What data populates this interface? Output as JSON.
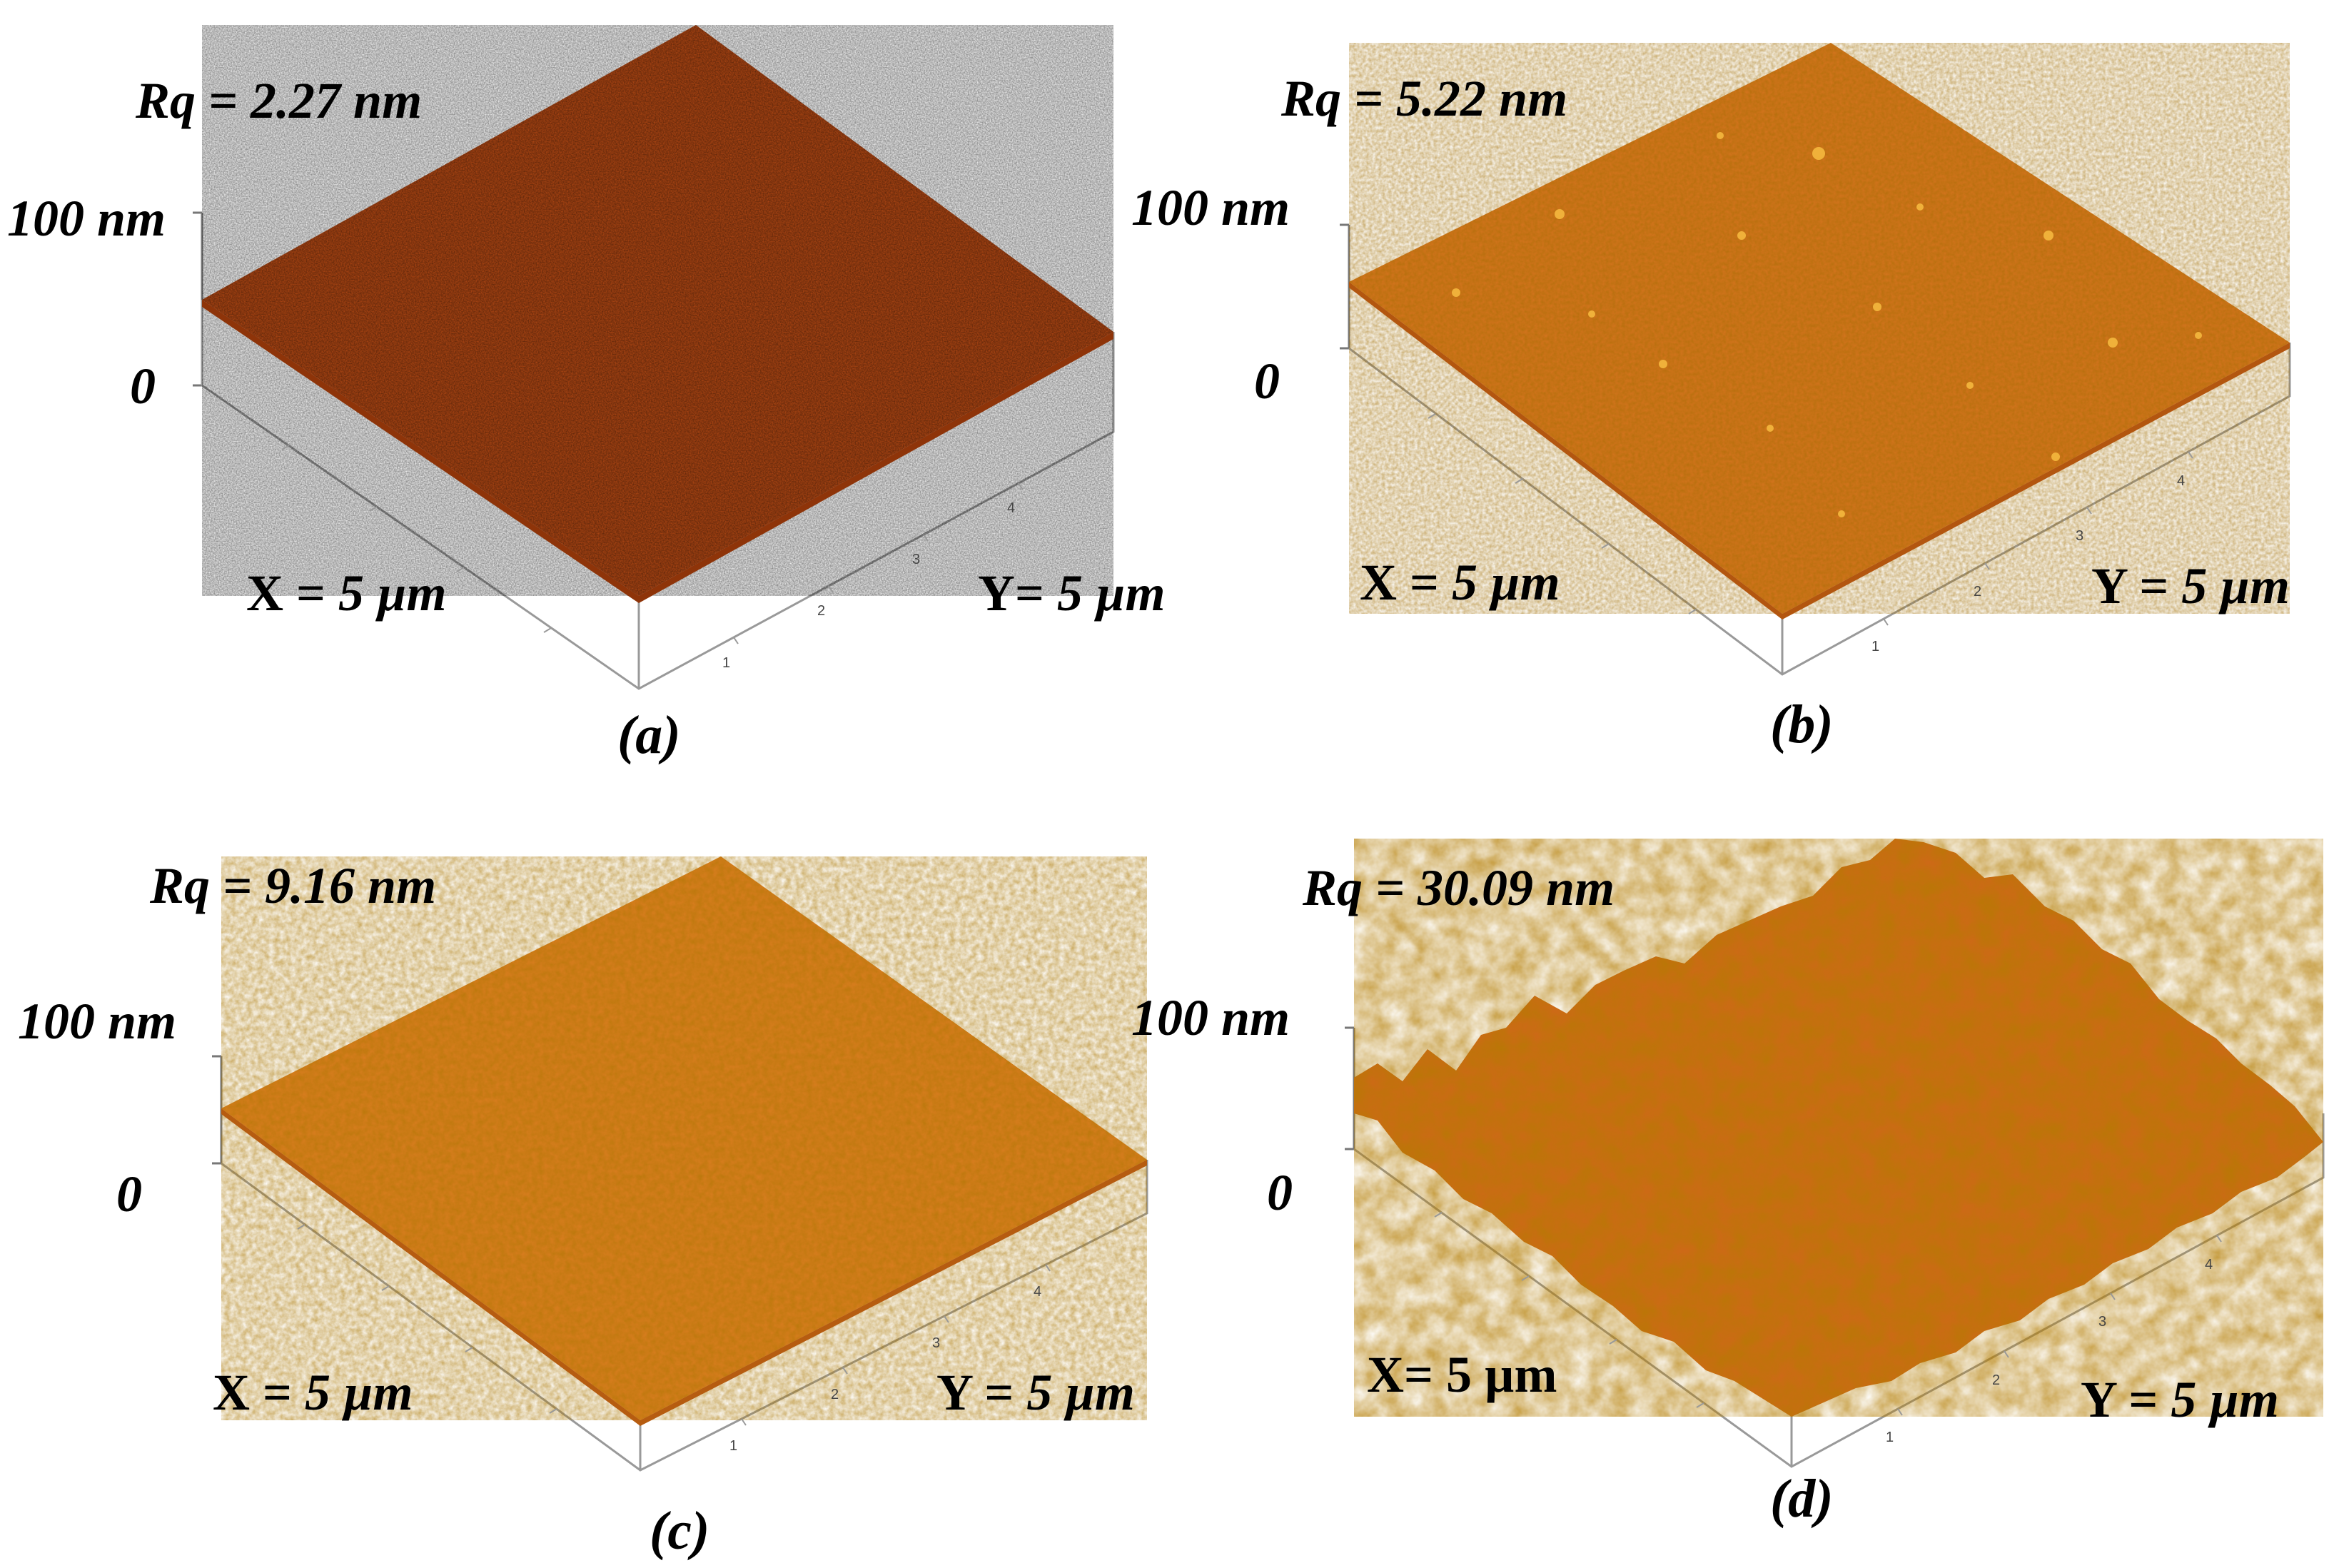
{
  "figure": {
    "panels": [
      {
        "id": "a",
        "roughness_label": "Rq = 2.27 nm",
        "z_top_label": "100 nm",
        "z_zero_label": "0",
        "x_label_prefix": "X = ",
        "x_label_value": "5 µm",
        "y_label_prefix": "Y= ",
        "y_label_value": "5 µm",
        "panel_label": "(a)",
        "y_ticks": [
          "1",
          "2",
          "3",
          "4"
        ],
        "surface_color": "#b84a14",
        "surface_shade": "#8e3409",
        "highlight_color": "#d9741f"
      },
      {
        "id": "b",
        "roughness_label": "Rq = 5.22 nm",
        "z_top_label": "100 nm",
        "z_zero_label": "0",
        "x_label_prefix": "X = ",
        "x_label_value": "5 µm",
        "y_label_prefix": "Y = ",
        "y_label_value": "5 µm",
        "panel_label": "(b)",
        "y_ticks": [
          "1",
          "2",
          "3",
          "4"
        ],
        "surface_color": "#d5741e",
        "surface_shade": "#b3560f",
        "highlight_color": "#f0b13a"
      },
      {
        "id": "c",
        "roughness_label": "Rq = 9.16 nm",
        "z_top_label": "100 nm",
        "z_zero_label": "0",
        "x_label_prefix": "X = ",
        "x_label_value": "5 µm",
        "y_label_prefix": "Y = ",
        "y_label_value": "5 µm",
        "panel_label": "(c)",
        "y_ticks": [
          "1",
          "2",
          "3",
          "4"
        ],
        "surface_color": "#da7d20",
        "surface_shade": "#b65c10",
        "highlight_color": "#f2b43c"
      },
      {
        "id": "d",
        "roughness_label": "Rq = 30.09 nm",
        "z_top_label": "100 nm",
        "z_zero_label": "0",
        "x_label_prefix": "X= ",
        "x_label_value": "5 µm",
        "y_label_prefix": "Y = ",
        "y_label_value": "5 µm",
        "panel_label": "(d)",
        "y_ticks": [
          "1",
          "2",
          "3",
          "4"
        ],
        "surface_color": "#cf6818",
        "surface_shade": "#9a3a08",
        "highlight_color": "#f0aa34"
      }
    ]
  }
}
